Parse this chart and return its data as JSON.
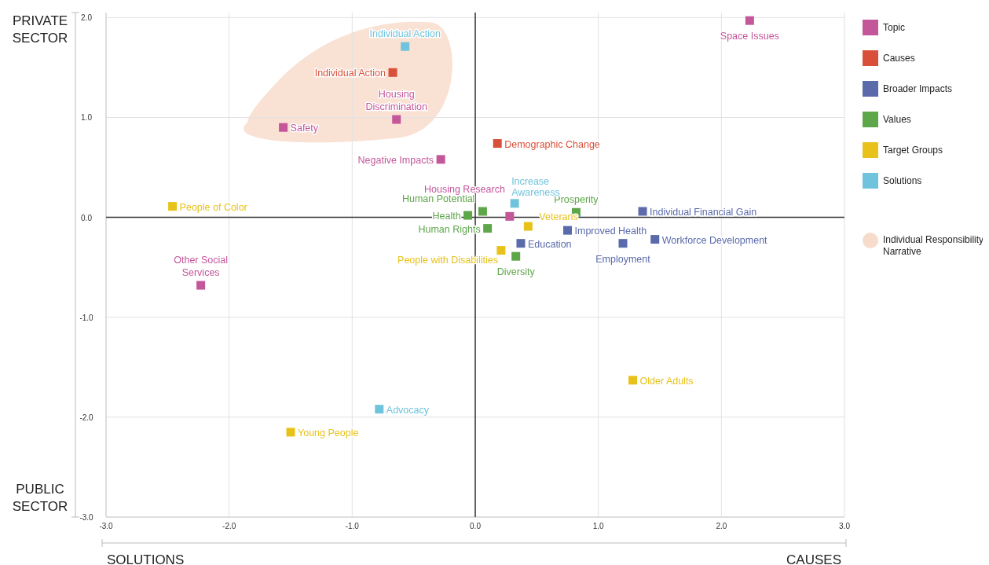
{
  "chart_data": {
    "type": "scatter",
    "xlim": [
      -3,
      3
    ],
    "ylim": [
      -3,
      2.05
    ],
    "xticks": [
      {
        "value": -3,
        "label": "-3.0"
      },
      {
        "value": -2,
        "label": "-2.0"
      },
      {
        "value": -1,
        "label": "-1.0"
      },
      {
        "value": 0,
        "label": "0.0"
      },
      {
        "value": 1,
        "label": "1.0"
      },
      {
        "value": 2,
        "label": "2.0"
      },
      {
        "value": 3,
        "label": "3.0"
      }
    ],
    "yticks": [
      {
        "value": -3,
        "label": "-3.0"
      },
      {
        "value": -2,
        "label": "-2.0"
      },
      {
        "value": -1,
        "label": "-1.0"
      },
      {
        "value": 0,
        "label": "0.0"
      },
      {
        "value": 1,
        "label": "1.0"
      },
      {
        "value": 2,
        "label": "2.0"
      }
    ],
    "grid": true,
    "legend": "right",
    "marker": "square",
    "annotations": [
      "PRIVATE SECTOR",
      "PUBLIC SECTOR",
      "SOLUTIONS",
      "CAUSES",
      "Individual Responsibility Narrative"
    ],
    "series": [
      {
        "name": "Topic",
        "color": "#c4569a",
        "x": [
          2.23,
          -1.56,
          -0.64,
          -0.28,
          0.28,
          -2.23
        ],
        "values": [
          1.97,
          0.9,
          0.98,
          0.58,
          0.01,
          -0.68
        ],
        "value_labels": [
          "Space Issues",
          "Safety",
          "Housing Discrimination",
          "Negative Impacts",
          "Housing Research",
          "Other Social Services"
        ]
      },
      {
        "name": "Causes",
        "color": "#d9503a",
        "x": [
          -0.67,
          0.18
        ],
        "values": [
          1.45,
          0.74
        ],
        "value_labels": [
          "Individual Action",
          "Demographic Change"
        ]
      },
      {
        "name": "Broader Impacts",
        "color": "#5a6aab",
        "x": [
          1.36,
          0.75,
          0.37,
          1.2,
          1.46
        ],
        "values": [
          0.06,
          -0.13,
          -0.26,
          -0.26,
          -0.22
        ],
        "value_labels": [
          "Individual Financial Gain",
          "Improved Health",
          "Education",
          "Employment",
          "Workforce Development"
        ]
      },
      {
        "name": "Values",
        "color": "#5ea64a",
        "x": [
          0.06,
          -0.06,
          0.82,
          0.1,
          0.33
        ],
        "values": [
          0.06,
          0.02,
          0.05,
          -0.11,
          -0.39
        ],
        "value_labels": [
          "Human Potential",
          "Health",
          "Prosperity",
          "Human Rights",
          "Diversity"
        ]
      },
      {
        "name": "Target Groups",
        "color": "#e8c21a",
        "x": [
          -2.46,
          0.43,
          0.21,
          1.28,
          -1.5
        ],
        "values": [
          0.11,
          -0.09,
          -0.33,
          -1.63,
          -2.15
        ],
        "value_labels": [
          "People of Color",
          "Veterans",
          "People with Disabilities",
          "Older Adults",
          "Young People"
        ]
      },
      {
        "name": "Solutions",
        "color": "#6fc3dc",
        "x": [
          -0.57,
          0.32,
          -0.78
        ],
        "values": [
          1.71,
          0.14,
          -1.92
        ],
        "value_labels": [
          "Individual Action",
          "Increase Awareness",
          "Advocacy"
        ]
      }
    ]
  }
}
